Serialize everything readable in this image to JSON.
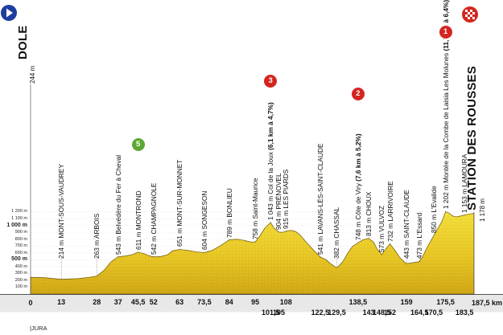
{
  "start": {
    "altitude": "244 m",
    "town": "DOLE"
  },
  "finish": {
    "altitude": "1 178 m",
    "town": "STATION DES ROUSSES"
  },
  "distance_label": "187,5 km",
  "zero_label": "0",
  "region": "|JURA",
  "y_axis": [
    {
      "label": "1 200 m",
      "m": 1200,
      "big": false
    },
    {
      "label": "1 100 m",
      "m": 1100,
      "big": false
    },
    {
      "label": "1 000 m",
      "m": 1000,
      "big": true
    },
    {
      "label": "900 m",
      "m": 900,
      "big": false
    },
    {
      "label": "800 m",
      "m": 800,
      "big": false
    },
    {
      "label": "700 m",
      "m": 700,
      "big": false
    },
    {
      "label": "600 m",
      "m": 600,
      "big": false
    },
    {
      "label": "500 m",
      "m": 500,
      "big": true
    },
    {
      "label": "400 m",
      "m": 400,
      "big": false
    },
    {
      "label": "300 m",
      "m": 300,
      "big": false
    },
    {
      "label": "200 m",
      "m": 200,
      "big": false
    },
    {
      "label": "100 m",
      "m": 100,
      "big": false
    }
  ],
  "places": [
    {
      "km": 13,
      "text": "214 m MONT-SOUS-VAUDREY",
      "bold": ""
    },
    {
      "km": 28,
      "text": "263 m ARBOIS",
      "bold": ""
    },
    {
      "km": 37,
      "text": "543 m Belvédère du Fer à Cheval",
      "bold": ""
    },
    {
      "km": 45.5,
      "text": "611 m MONTROND",
      "bold": ""
    },
    {
      "km": 52,
      "text": "542 m CHAMPAGNOLE",
      "bold": ""
    },
    {
      "km": 63,
      "text": "651 m MONT-SUR-MONNET",
      "bold": ""
    },
    {
      "km": 73.5,
      "text": "604 m SONGESON",
      "bold": ""
    },
    {
      "km": 84,
      "text": "789 m BONLIEU",
      "bold": ""
    },
    {
      "km": 95,
      "text": "758 m Saint-Maurice",
      "bold": ""
    },
    {
      "km": 101.5,
      "text": "1 043 m Col de la Joux ",
      "bold": "(6,1 km à 4,7%)"
    },
    {
      "km": 105,
      "text": "904 m PRÉNOVEL",
      "bold": ""
    },
    {
      "km": 108,
      "text": "915 m LES PIARDS",
      "bold": ""
    },
    {
      "km": 122.5,
      "text": "541 m LAVANS-LÈS-SAINT-CLAUDE",
      "bold": ""
    },
    {
      "km": 129.5,
      "text": "382 m CHASSAL",
      "bold": ""
    },
    {
      "km": 138.5,
      "text": "748 m Côte de Viry ",
      "bold": "(7,6 km à 5,2%)"
    },
    {
      "km": 143,
      "text": "813 m CHOUX",
      "bold": ""
    },
    {
      "km": 148.5,
      "text": "573 m VULVOZ",
      "bold": ""
    },
    {
      "km": 152,
      "text": "732 m LARRIVOIRE",
      "bold": ""
    },
    {
      "km": 159,
      "text": "443 m SAINT-CLAUDE",
      "bold": ""
    },
    {
      "km": 164.5,
      "text": "473 m L'Essard",
      "bold": ""
    },
    {
      "km": 170.5,
      "text": "850 m L'Evalide",
      "bold": ""
    },
    {
      "km": 175.5,
      "text": "1 202 m Montée de la Combe de Laisia Les Molunes ",
      "bold": "(11,7 km à 6,4%)"
    },
    {
      "km": 183.5,
      "text": "1 153 m LAMOURA",
      "bold": ""
    }
  ],
  "km_marks": [
    "13",
    "28",
    "37",
    "45,5",
    "52",
    "63",
    "73,5",
    "84",
    "95",
    "101,5",
    "105",
    "108",
    "122,5",
    "129,5",
    "138,5",
    "143",
    "148,5",
    "152",
    "159",
    "164,5",
    "170,5",
    "175,5",
    "183,5"
  ],
  "badges": [
    {
      "text": "5",
      "type": "sprint",
      "km": 45.5
    },
    {
      "text": "3",
      "type": "climb",
      "km": 101.5
    },
    {
      "text": "2",
      "type": "climb",
      "km": 138.5
    },
    {
      "text": "1",
      "type": "climb",
      "km": 175.5
    }
  ],
  "profile": [
    [
      0,
      244
    ],
    [
      6,
      238
    ],
    [
      13,
      214
    ],
    [
      20,
      225
    ],
    [
      25,
      245
    ],
    [
      28,
      263
    ],
    [
      31,
      345
    ],
    [
      34,
      470
    ],
    [
      37,
      543
    ],
    [
      40,
      555
    ],
    [
      43,
      575
    ],
    [
      45.5,
      611
    ],
    [
      48,
      590
    ],
    [
      50,
      560
    ],
    [
      52,
      542
    ],
    [
      55,
      548
    ],
    [
      58,
      575
    ],
    [
      60,
      630
    ],
    [
      63,
      651
    ],
    [
      66,
      640
    ],
    [
      70,
      615
    ],
    [
      73.5,
      604
    ],
    [
      77,
      640
    ],
    [
      80,
      700
    ],
    [
      84,
      789
    ],
    [
      87,
      800
    ],
    [
      90,
      785
    ],
    [
      93,
      760
    ],
    [
      95,
      758
    ],
    [
      97,
      850
    ],
    [
      99,
      960
    ],
    [
      101.5,
      1043
    ],
    [
      103,
      960
    ],
    [
      105,
      904
    ],
    [
      106.5,
      900
    ],
    [
      108,
      915
    ],
    [
      110,
      930
    ],
    [
      112,
      915
    ],
    [
      114,
      860
    ],
    [
      117,
      740
    ],
    [
      120,
      630
    ],
    [
      122.5,
      541
    ],
    [
      125,
      500
    ],
    [
      127,
      440
    ],
    [
      129.5,
      382
    ],
    [
      132,
      470
    ],
    [
      134,
      590
    ],
    [
      136,
      690
    ],
    [
      138.5,
      748
    ],
    [
      140.5,
      790
    ],
    [
      143,
      813
    ],
    [
      145,
      760
    ],
    [
      146.5,
      660
    ],
    [
      148.5,
      573
    ],
    [
      150,
      650
    ],
    [
      152,
      732
    ],
    [
      154,
      640
    ],
    [
      156,
      540
    ],
    [
      158,
      470
    ],
    [
      159,
      443
    ],
    [
      162,
      460
    ],
    [
      164.5,
      473
    ],
    [
      166,
      560
    ],
    [
      168,
      700
    ],
    [
      170.5,
      850
    ],
    [
      172,
      940
    ],
    [
      174,
      1060
    ],
    [
      175.5,
      1202
    ],
    [
      177,
      1180
    ],
    [
      178.5,
      1140
    ],
    [
      180,
      1125
    ],
    [
      182,
      1140
    ],
    [
      183.5,
      1153
    ],
    [
      185.5,
      1166
    ],
    [
      187.5,
      1178
    ]
  ]
}
